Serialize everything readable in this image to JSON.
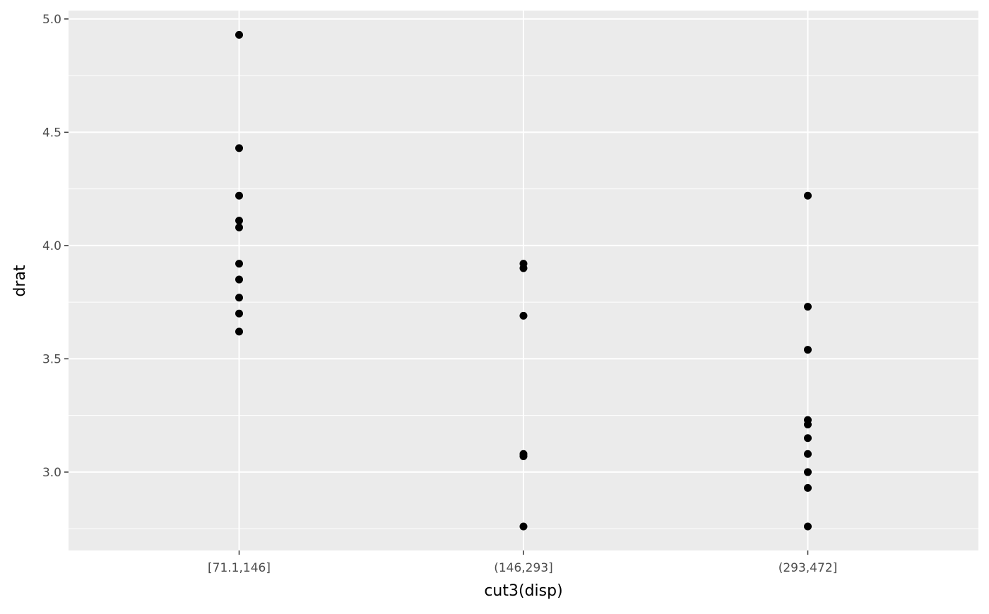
{
  "chart_data": {
    "type": "scatter",
    "title": "",
    "xlabel": "cut3(disp)",
    "ylabel": "drat",
    "categories": [
      "[71.1,146]",
      "(146,293]",
      "(293,472]"
    ],
    "ylim": [
      2.654,
      5.037
    ],
    "yticks": [
      3.0,
      3.5,
      4.0,
      4.5,
      5.0
    ],
    "ytick_labels": [
      "3.0",
      "3.5",
      "4.0",
      "4.5",
      "5.0"
    ],
    "grid": true,
    "panel_background": "#EBEBEB",
    "point_color": "#000000",
    "series": [
      {
        "category": "[71.1,146]",
        "values": [
          4.93,
          4.43,
          4.22,
          4.11,
          4.08,
          3.92,
          3.85,
          3.77,
          3.7,
          3.62
        ]
      },
      {
        "category": "(146,293]",
        "values": [
          3.92,
          3.9,
          3.69,
          3.08,
          3.07,
          2.76
        ]
      },
      {
        "category": "(293,472]",
        "values": [
          4.22,
          3.73,
          3.54,
          3.23,
          3.21,
          3.15,
          3.08,
          3.0,
          2.93,
          2.76
        ]
      }
    ]
  }
}
